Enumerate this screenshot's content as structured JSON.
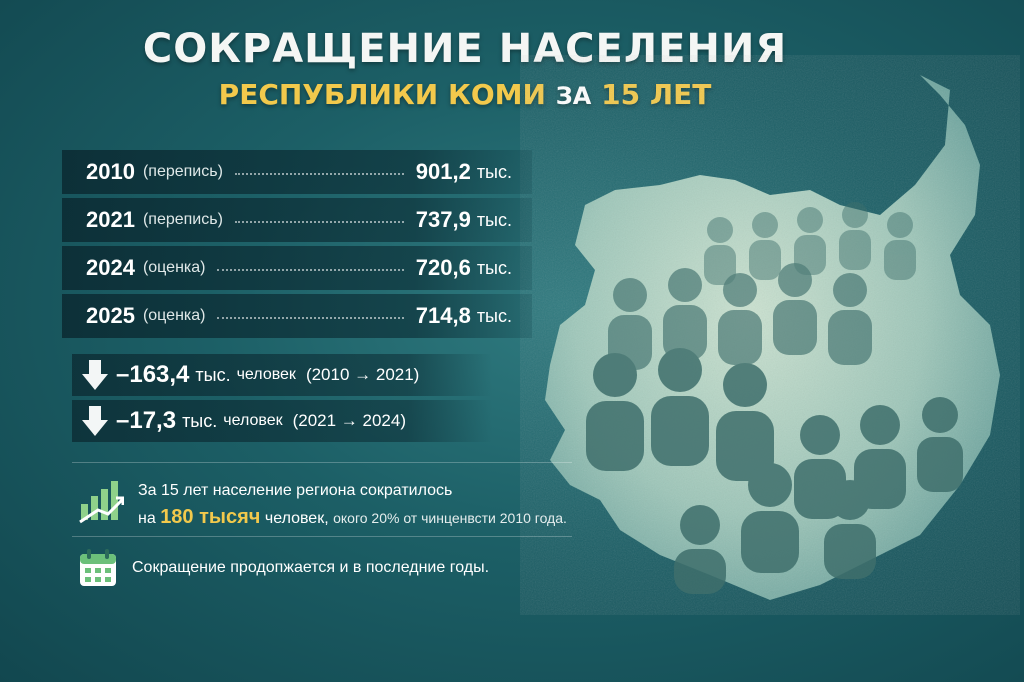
{
  "header": {
    "title": "СОКРАЩЕНИЕ НАСЕЛЕНИЯ",
    "subtitle_region": "РЕСПУБЛИКИ КОМИ",
    "subtitle_za": "ЗА",
    "subtitle_years": "15 ЛЕТ"
  },
  "stats": [
    {
      "year": "2010",
      "note": "(перепись)",
      "value": "901,2",
      "unit": "тыс."
    },
    {
      "year": "2021",
      "note": "(перепись)",
      "value": "737,9",
      "unit": "тыс."
    },
    {
      "year": "2024",
      "note": "(оценка)",
      "value": "720,6",
      "unit": "тыс."
    },
    {
      "year": "2025",
      "note": "(оценка)",
      "value": "714,8",
      "unit": "тыс."
    }
  ],
  "declines": [
    {
      "value": "–163,4",
      "unit": "тыс.",
      "people": "человек",
      "range": "(2010 → 2021)"
    },
    {
      "value": "–17,3",
      "unit": "тыс.",
      "people": "человек",
      "range": "(2021 → 2024)"
    }
  ],
  "info": {
    "line1": "За 15 лет население региона сократилось",
    "line2_prefix": "на",
    "line2_highlight": "180 тысяч",
    "line2_people": "человек,",
    "line2_rest": "окого 20% от чинценвсти 2010 года.",
    "line3": "Сокращение продопжается и в последние годы."
  },
  "icons": {
    "decline_arrow": "down-arrow-icon",
    "growth_chart": "bar-chart-icon",
    "calendar": "calendar-icon"
  },
  "colors": {
    "accent": "#f2c94c",
    "background": "#1c5f66"
  }
}
